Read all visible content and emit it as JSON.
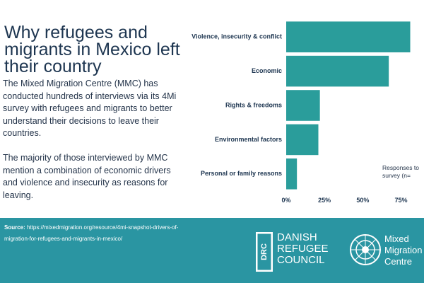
{
  "heading": {
    "title": "Why refugees and migrants in Mexico left their country",
    "intro": "The Mixed Migration Centre (MMC) has conducted hundreds of interviews via its 4Mi survey with refugees and migrants to better understand their decisions to leave their countries.",
    "summary": "The majority of those interviewed by MMC mention a combination of economic drivers and violence and insecurity as reasons for leaving."
  },
  "chart_data": {
    "type": "bar",
    "orientation": "horizontal",
    "categories": [
      "Violence, insecurity & conflict",
      "Economic",
      "Rights & freedoms",
      "Environmental factors",
      "Personal or family reasons"
    ],
    "values": [
      81,
      67,
      22,
      21,
      7
    ],
    "unit": "%",
    "xlim": [
      0,
      90
    ],
    "ticks": [
      "0%",
      "25%",
      "50%",
      "75%"
    ],
    "tick_values": [
      0,
      25,
      50,
      75
    ],
    "bar_color": "#2a9d9b",
    "note_lines": [
      "Responses to",
      "survey (n="
    ]
  },
  "footer": {
    "source_label": "Source:",
    "source_text": "https://mixedmigration.org/resource/4mi-snapshot-drivers-of-migration-for-refugees-and-migrants-in-mexico/",
    "background": "#2a95a2",
    "drc_mark": "DRC",
    "drc_lines": [
      "DANISH",
      "REFUGEE",
      "COUNCIL"
    ],
    "mmc_lines": [
      "Mixed",
      "Migration",
      "Centre"
    ]
  }
}
